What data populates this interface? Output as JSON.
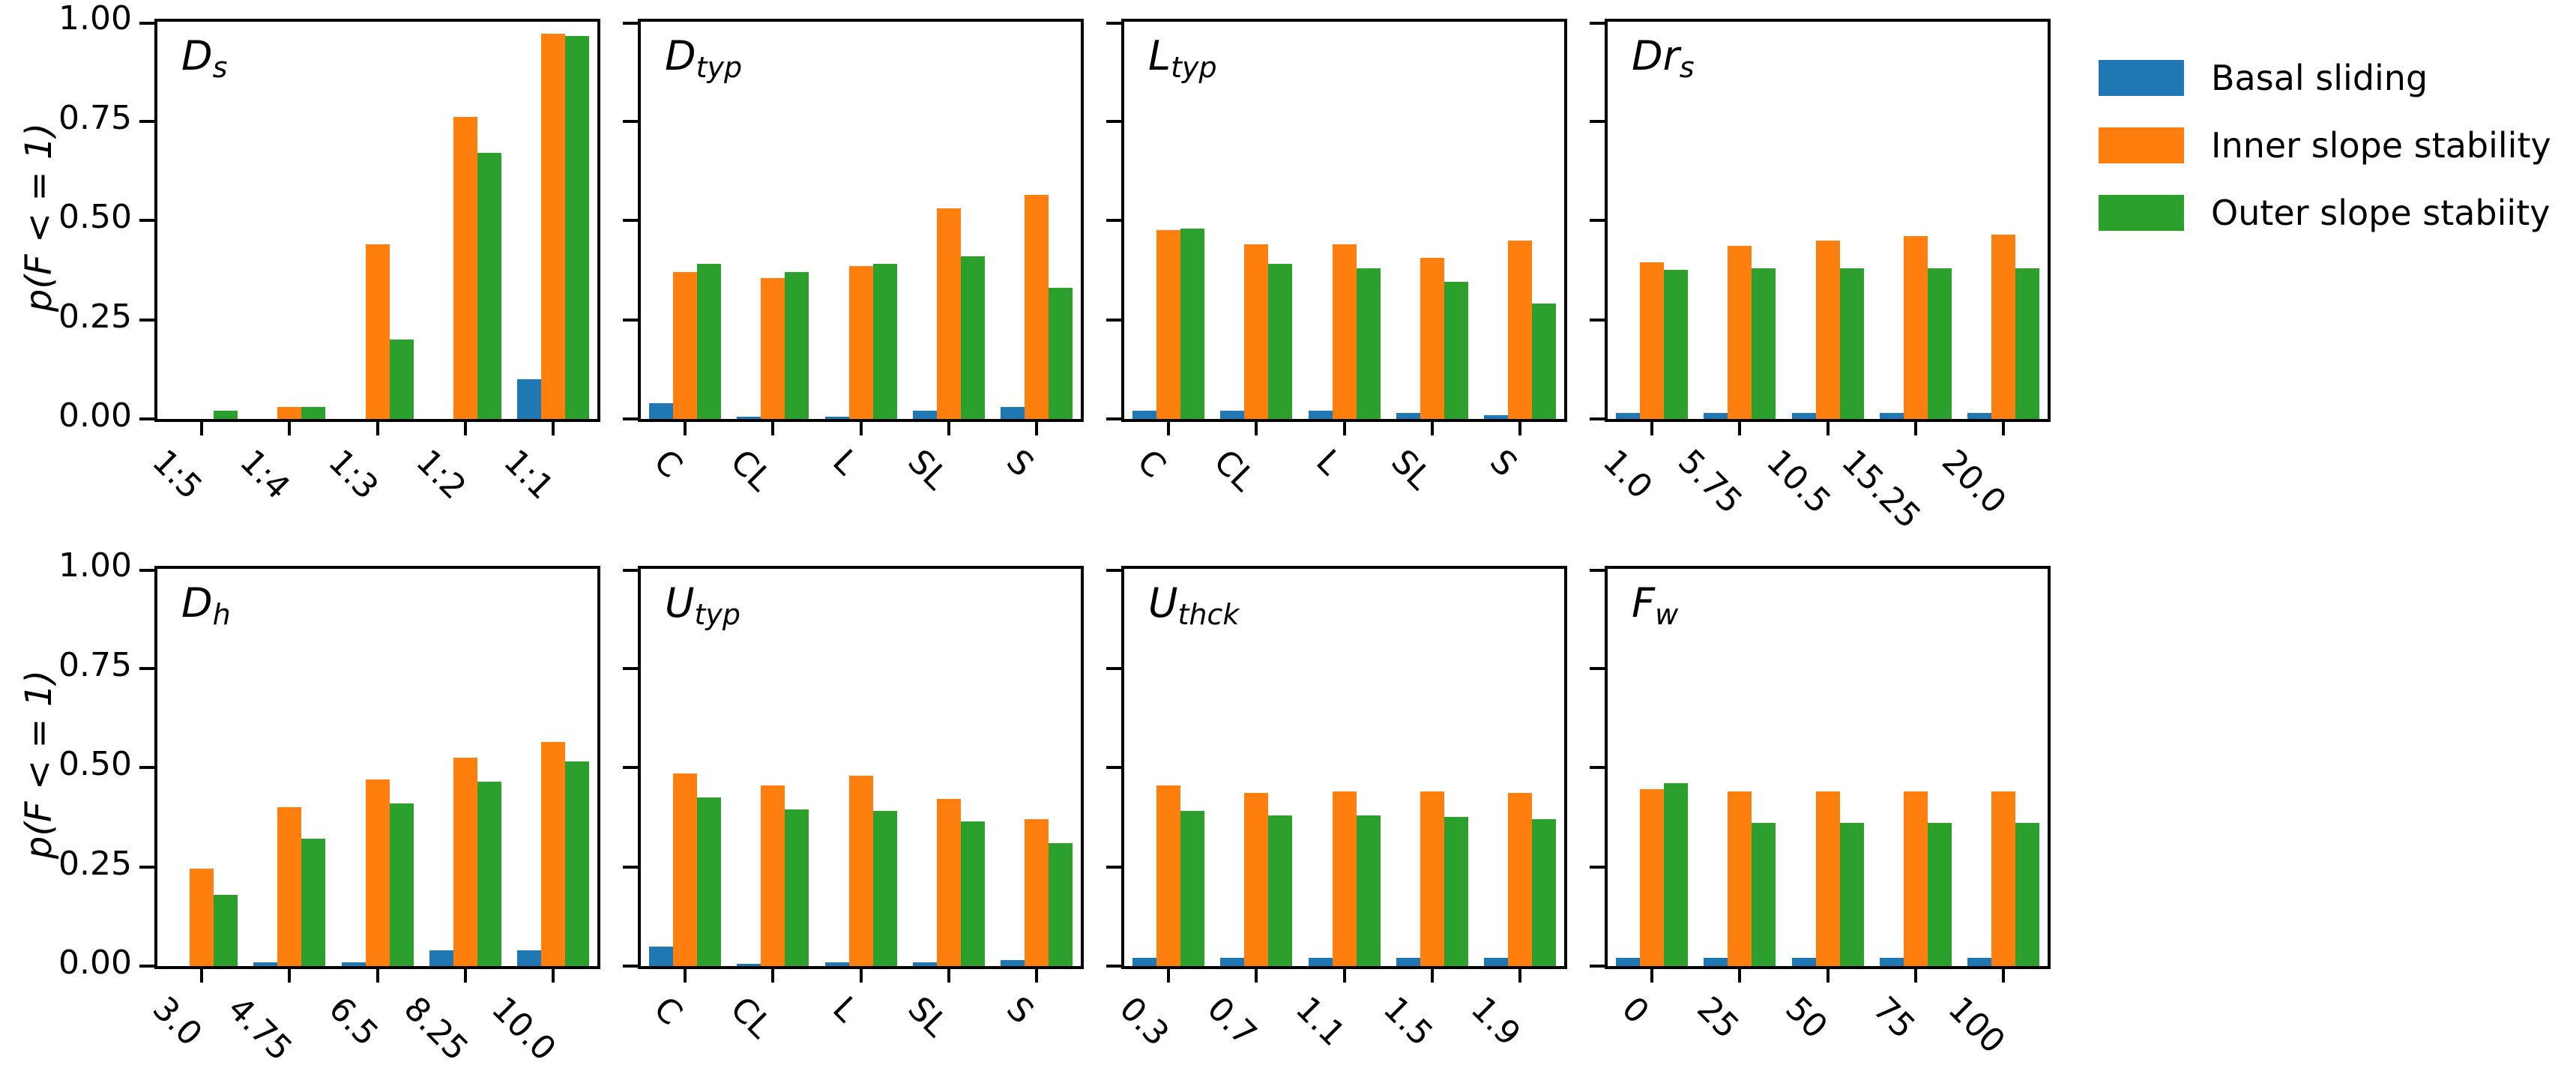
{
  "figure": {
    "ylabel": "p(F < = 1)",
    "background": "#ffffff",
    "axis_color": "#000000",
    "ytick_labels": [
      "1.00",
      "0.75",
      "0.50",
      "0.25",
      "0.00"
    ]
  },
  "legend": {
    "items": [
      {
        "key": "basal",
        "label": "Basal sliding",
        "color": "#1f77b4"
      },
      {
        "key": "inner",
        "label": "Inner slope stability",
        "color": "#ff7f0e"
      },
      {
        "key": "outer",
        "label": "Outer slope stabiity",
        "color": "#2ca02c"
      }
    ]
  },
  "chart_data": [
    {
      "type": "bar",
      "panel": "Ds",
      "title": "D",
      "title_sub": "s",
      "categories": [
        "1:5",
        "1:4",
        "1:3",
        "1:2",
        "1:1"
      ],
      "ylabel": "p(F < = 1)",
      "ylim": [
        0,
        1
      ],
      "yticks": [
        0,
        0.25,
        0.5,
        0.75,
        1.0
      ],
      "series": [
        {
          "name": "Basal sliding",
          "values": [
            0,
            0,
            0,
            0,
            0.1
          ]
        },
        {
          "name": "Inner slope stability",
          "values": [
            0,
            0.03,
            0.44,
            0.76,
            0.97
          ]
        },
        {
          "name": "Outer slope stabiity",
          "values": [
            0.02,
            0.03,
            0.2,
            0.67,
            0.965
          ]
        }
      ]
    },
    {
      "type": "bar",
      "panel": "Dtyp",
      "title": "D",
      "title_sub": "typ",
      "categories": [
        "C",
        "CL",
        "L",
        "SL",
        "S"
      ],
      "ylabel": "p(F < = 1)",
      "ylim": [
        0,
        1
      ],
      "yticks": [
        0,
        0.25,
        0.5,
        0.75,
        1.0
      ],
      "series": [
        {
          "name": "Basal sliding",
          "values": [
            0.04,
            0.005,
            0.005,
            0.02,
            0.03
          ]
        },
        {
          "name": "Inner slope stability",
          "values": [
            0.37,
            0.355,
            0.385,
            0.53,
            0.565
          ]
        },
        {
          "name": "Outer slope stabiity",
          "values": [
            0.39,
            0.37,
            0.39,
            0.41,
            0.33
          ]
        }
      ]
    },
    {
      "type": "bar",
      "panel": "Ltyp",
      "title": "L",
      "title_sub": "typ",
      "categories": [
        "C",
        "CL",
        "L",
        "SL",
        "S"
      ],
      "ylabel": "p(F < = 1)",
      "ylim": [
        0,
        1
      ],
      "yticks": [
        0,
        0.25,
        0.5,
        0.75,
        1.0
      ],
      "series": [
        {
          "name": "Basal sliding",
          "values": [
            0.02,
            0.02,
            0.02,
            0.015,
            0.01
          ]
        },
        {
          "name": "Inner slope stability",
          "values": [
            0.475,
            0.44,
            0.44,
            0.405,
            0.45
          ]
        },
        {
          "name": "Outer slope stabiity",
          "values": [
            0.48,
            0.39,
            0.38,
            0.345,
            0.29
          ]
        }
      ]
    },
    {
      "type": "bar",
      "panel": "Drs",
      "title": "Dr",
      "title_sub": "s",
      "categories": [
        "1.0",
        "5.75",
        "10.5",
        "15.25",
        "20.0"
      ],
      "ylabel": "p(F < = 1)",
      "ylim": [
        0,
        1
      ],
      "yticks": [
        0,
        0.25,
        0.5,
        0.75,
        1.0
      ],
      "series": [
        {
          "name": "Basal sliding",
          "values": [
            0.015,
            0.015,
            0.015,
            0.015,
            0.015
          ]
        },
        {
          "name": "Inner slope stability",
          "values": [
            0.395,
            0.435,
            0.45,
            0.46,
            0.465
          ]
        },
        {
          "name": "Outer slope stabiity",
          "values": [
            0.375,
            0.38,
            0.38,
            0.38,
            0.38
          ]
        }
      ]
    },
    {
      "type": "bar",
      "panel": "Dh",
      "title": "D",
      "title_sub": "h",
      "categories": [
        "3.0",
        "4.75",
        "6.5",
        "8.25",
        "10.0"
      ],
      "ylabel": "p(F < = 1)",
      "ylim": [
        0,
        1
      ],
      "yticks": [
        0,
        0.25,
        0.5,
        0.75,
        1.0
      ],
      "series": [
        {
          "name": "Basal sliding",
          "values": [
            0,
            0.01,
            0.01,
            0.04,
            0.04
          ]
        },
        {
          "name": "Inner slope stability",
          "values": [
            0.245,
            0.4,
            0.47,
            0.525,
            0.565
          ]
        },
        {
          "name": "Outer slope stabiity",
          "values": [
            0.18,
            0.32,
            0.41,
            0.465,
            0.515
          ]
        }
      ]
    },
    {
      "type": "bar",
      "panel": "Utyp",
      "title": "U",
      "title_sub": "typ",
      "categories": [
        "C",
        "CL",
        "L",
        "SL",
        "S"
      ],
      "ylabel": "p(F < = 1)",
      "ylim": [
        0,
        1
      ],
      "yticks": [
        0,
        0.25,
        0.5,
        0.75,
        1.0
      ],
      "series": [
        {
          "name": "Basal sliding",
          "values": [
            0.05,
            0.005,
            0.01,
            0.01,
            0.015
          ]
        },
        {
          "name": "Inner slope stability",
          "values": [
            0.485,
            0.455,
            0.48,
            0.42,
            0.37
          ]
        },
        {
          "name": "Outer slope stabiity",
          "values": [
            0.425,
            0.395,
            0.39,
            0.365,
            0.31
          ]
        }
      ]
    },
    {
      "type": "bar",
      "panel": "Uthck",
      "title": "U",
      "title_sub": "thck",
      "categories": [
        "0.3",
        "0.7",
        "1.1",
        "1.5",
        "1.9"
      ],
      "ylabel": "p(F < = 1)",
      "ylim": [
        0,
        1
      ],
      "yticks": [
        0,
        0.25,
        0.5,
        0.75,
        1.0
      ],
      "series": [
        {
          "name": "Basal sliding",
          "values": [
            0.02,
            0.02,
            0.02,
            0.02,
            0.02
          ]
        },
        {
          "name": "Inner slope stability",
          "values": [
            0.455,
            0.435,
            0.44,
            0.44,
            0.435
          ]
        },
        {
          "name": "Outer slope stabiity",
          "values": [
            0.39,
            0.38,
            0.38,
            0.375,
            0.37
          ]
        }
      ]
    },
    {
      "type": "bar",
      "panel": "Fw",
      "title": "F",
      "title_sub": "w",
      "categories": [
        "0",
        "25",
        "50",
        "75",
        "100"
      ],
      "ylabel": "p(F < = 1)",
      "ylim": [
        0,
        1
      ],
      "yticks": [
        0,
        0.25,
        0.5,
        0.75,
        1.0
      ],
      "series": [
        {
          "name": "Basal sliding",
          "values": [
            0.02,
            0.02,
            0.02,
            0.02,
            0.02
          ]
        },
        {
          "name": "Inner slope stability",
          "values": [
            0.445,
            0.44,
            0.44,
            0.44,
            0.44
          ]
        },
        {
          "name": "Outer slope stabiity",
          "values": [
            0.46,
            0.36,
            0.36,
            0.36,
            0.36
          ]
        }
      ]
    }
  ]
}
